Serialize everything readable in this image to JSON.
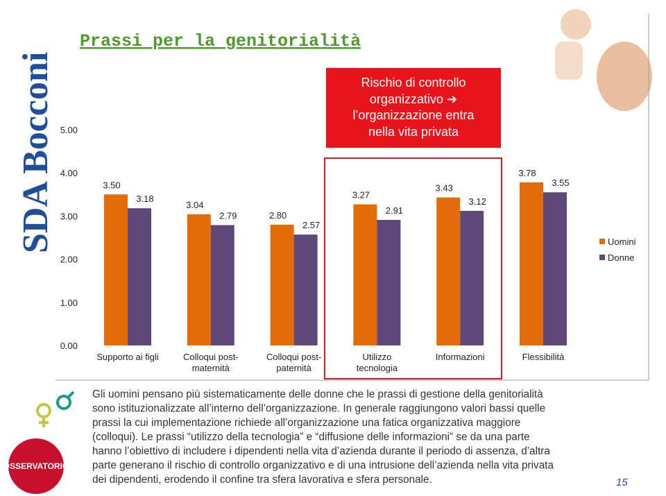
{
  "title": "Prassi per la genitorialità",
  "logo_sda": "SDA Bocconi",
  "logo_osservatorio": "OSSERVATORIO",
  "callout": [
    "Rischio di controllo",
    "organizzativo ➔",
    "l’organizzazione entra",
    "nella vita privata"
  ],
  "chart_data": {
    "type": "bar",
    "categories": [
      "Supporto ai figli",
      "Colloqui post-maternità",
      "Colloqui post-paternità",
      "Utilizzo tecnologia",
      "Informazioni",
      "Flessibilità"
    ],
    "series": [
      {
        "name": "Uomini",
        "color": "#e36c09",
        "values": [
          3.5,
          3.04,
          2.8,
          3.27,
          3.43,
          3.78
        ],
        "value_labels": [
          "3.50",
          "3.04",
          "2.80",
          "3.27",
          "3.43",
          "3.78"
        ]
      },
      {
        "name": "Donne",
        "color": "#5f497a",
        "values": [
          3.18,
          2.79,
          2.57,
          2.91,
          3.12,
          3.55
        ],
        "value_labels": [
          "3.18",
          "2.79",
          "2.57",
          "2.91",
          "3.12",
          "3.55"
        ]
      }
    ],
    "ylim": [
      0,
      5
    ],
    "yticks": [
      {
        "value": 0,
        "label": "0.00"
      },
      {
        "value": 1,
        "label": "1.00"
      },
      {
        "value": 2,
        "label": "2.00"
      },
      {
        "value": 3,
        "label": "3.00"
      },
      {
        "value": 4,
        "label": "4.00"
      },
      {
        "value": 5,
        "label": "5.00"
      }
    ],
    "legend": "right"
  },
  "body": {
    "lines": [
      "Gli uomini pensano più sistematicamente delle donne che le prassi di gestione della genitorialità",
      "sono istituzionalizzate all’interno dell’organizzazione. In generale raggiungono valori bassi quelle",
      "prassi la cui implementazione richiede all’organizzazione una fatica organizzativa maggiore",
      "(colloqui). Le prassi “utilizzo della tecnologia” e “diffusione delle informazioni” se da una parte",
      "hanno l’obiettivo di includere i dipendenti nella vita d’azienda durante il periodo di assenza, d’altra",
      "parte generano il rischio di controllo organizzativo e di una intrusione dell’azienda nella vita privata",
      "dei dipendenti, erodendo il confine tra sfera lavorativa e sfera personale."
    ]
  },
  "page_number": "15"
}
